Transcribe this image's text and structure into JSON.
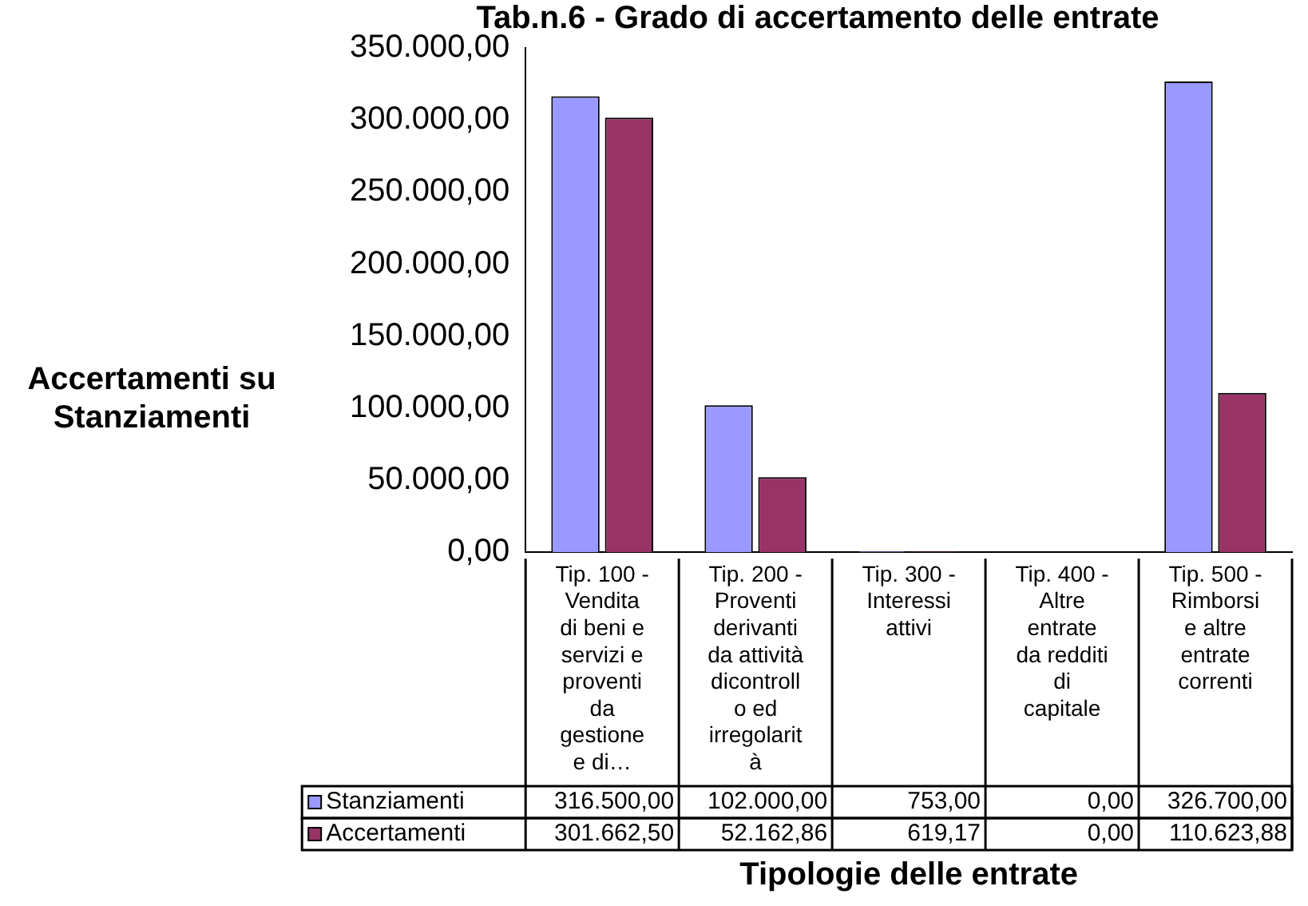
{
  "chart_data": {
    "type": "bar",
    "title": "Tab.n.6 - Grado di accertamento delle entrate",
    "xlabel": "Tipologie delle entrate",
    "ylabel": "Accertamenti su Stanziamenti",
    "categories": [
      "Tip. 100 - Vendita di beni e servizi e proventi da gestione e di…",
      "Tip. 200 - Proventi derivanti da attività dicontrollo ed irregolarità",
      "Tip. 300 - Interessi attivi",
      "Tip. 400 - Altre entrate da redditi di capitale",
      "Tip. 500 - Rimborsi e altre entrate correnti"
    ],
    "series": [
      {
        "name": "Stanziamenti",
        "color": "#9999ff",
        "values": [
          316500,
          102000,
          753,
          0,
          326700
        ],
        "value_labels": [
          "316.500,00",
          "102.000,00",
          "753,00",
          "0,00",
          "326.700,00"
        ]
      },
      {
        "name": "Accertamenti",
        "color": "#993366",
        "values": [
          301662.5,
          52162.86,
          619.17,
          0,
          110623.88
        ],
        "value_labels": [
          "301.662,50",
          "52.162,86",
          "619,17",
          "0,00",
          "110.623,88"
        ]
      }
    ],
    "ylim": [
      0,
      350000
    ],
    "yticks": [
      {
        "value": 0,
        "label": "0,00"
      },
      {
        "value": 50000,
        "label": "50.000,00"
      },
      {
        "value": 100000,
        "label": "100.000,00"
      },
      {
        "value": 150000,
        "label": "150.000,00"
      },
      {
        "value": 200000,
        "label": "200.000,00"
      },
      {
        "value": 250000,
        "label": "250.000,00"
      },
      {
        "value": 300000,
        "label": "300.000,00"
      },
      {
        "value": 350000,
        "label": "350.000,00"
      }
    ],
    "grid": false,
    "legend": "bottom"
  }
}
